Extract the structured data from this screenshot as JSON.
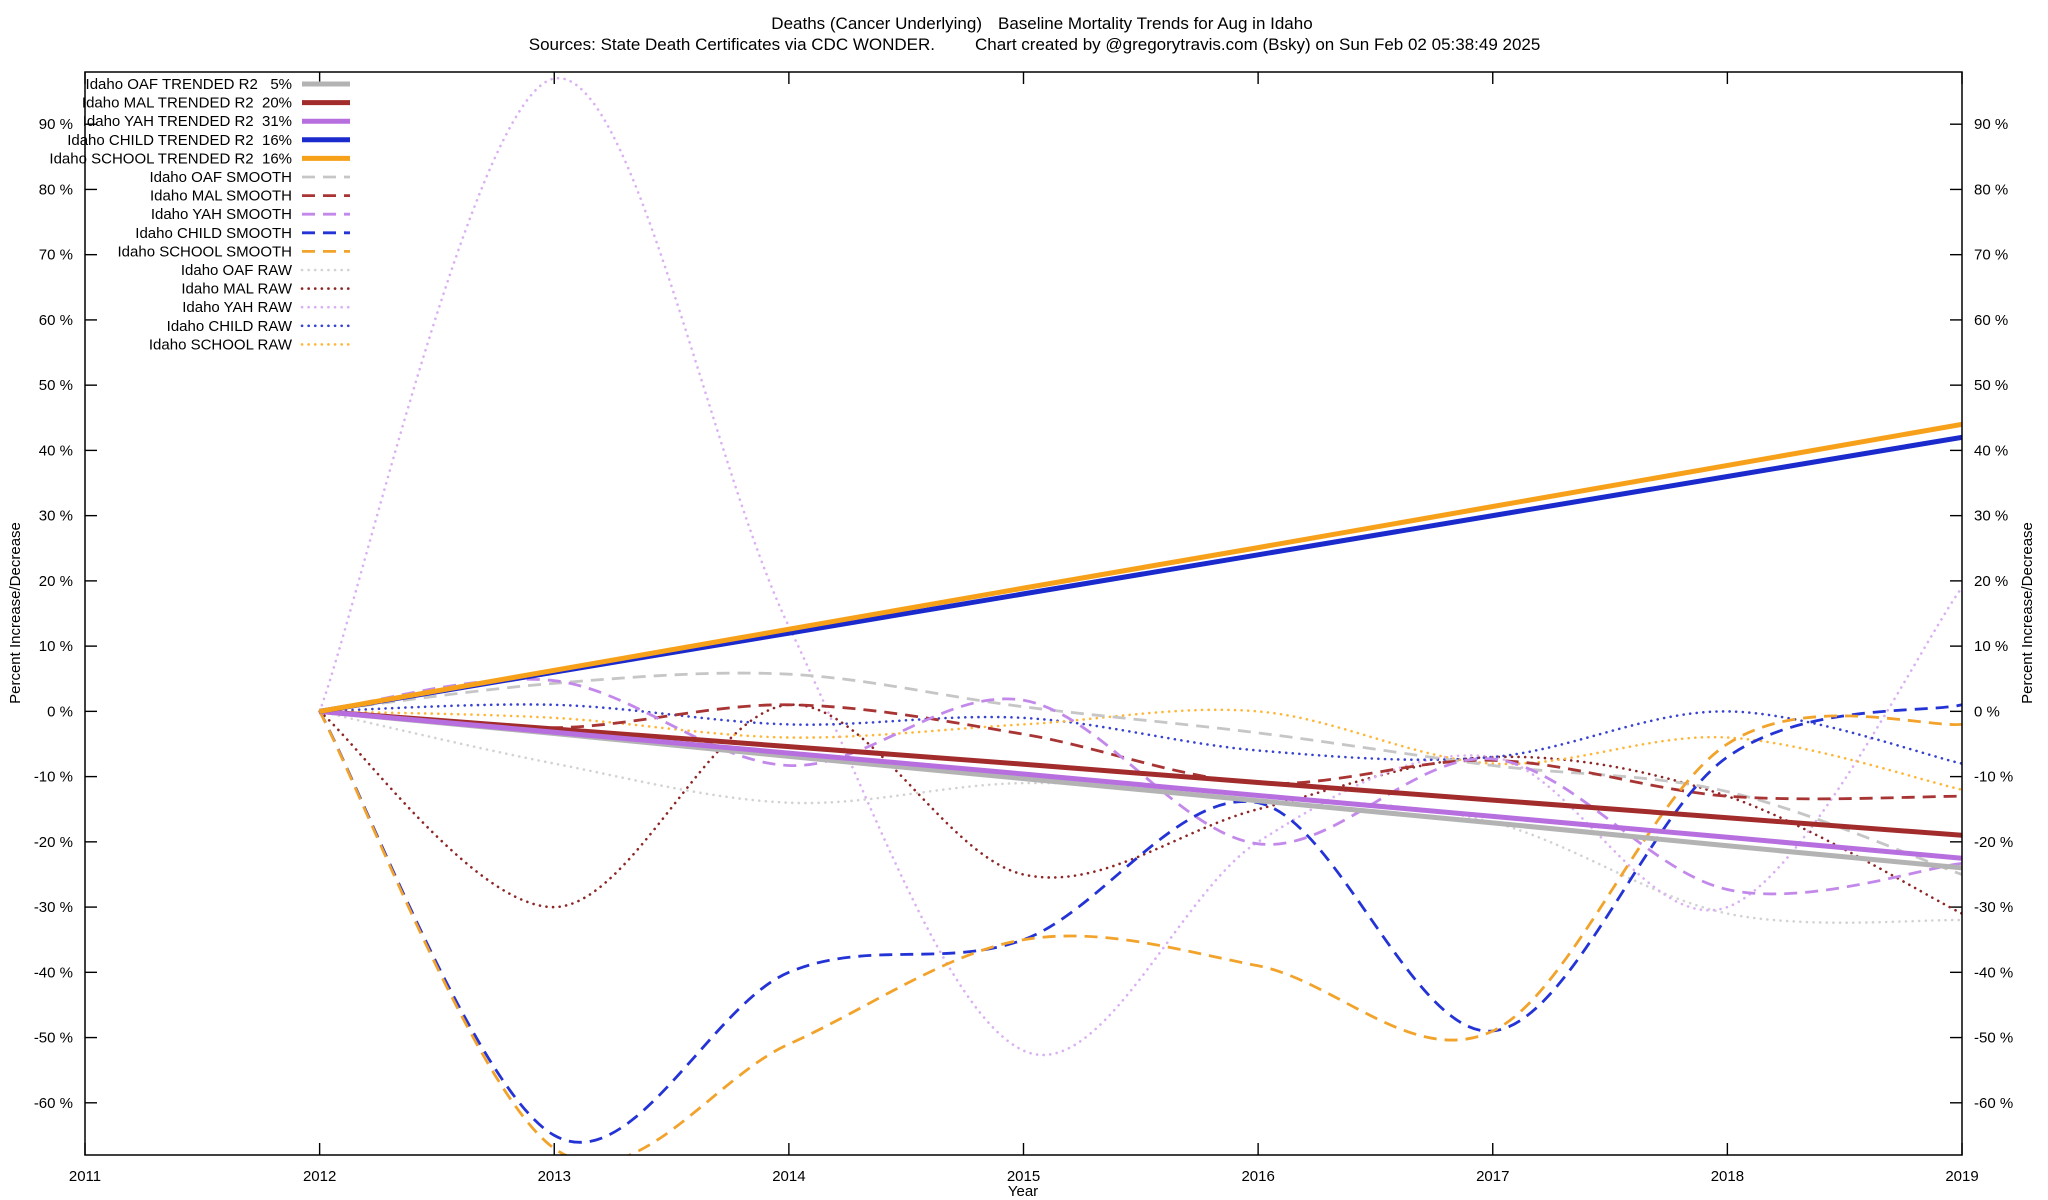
{
  "header": {
    "title_left": "Deaths (Cancer Underlying)",
    "title_right": "Baseline Mortality Trends for Aug in Idaho",
    "subtitle_left": "Sources: State Death Certificates via CDC WONDER.",
    "subtitle_right": "Chart created by @gregorytravis.com (Bsky) on Sun Feb 02 05:38:49 2025"
  },
  "chart_data": {
    "type": "line",
    "title": "Deaths (Cancer Underlying)  Baseline Mortality Trends for Aug in Idaho",
    "xlabel": "Year",
    "ylabel": "Percent Increase/Decrease",
    "y2label": "Percent Increase/Decrease",
    "xlim": [
      2011,
      2019
    ],
    "ylim": [
      -68,
      98
    ],
    "xticks": [
      2011,
      2012,
      2013,
      2014,
      2015,
      2016,
      2017,
      2018,
      2019
    ],
    "yticks": [
      -60,
      -50,
      -40,
      -30,
      -20,
      -10,
      0,
      10,
      20,
      30,
      40,
      50,
      60,
      70,
      80,
      90
    ],
    "ytick_suffix": " %",
    "grid": false,
    "legend_position": "top-left",
    "x": [
      2012,
      2013,
      2014,
      2015,
      2016,
      2017,
      2018,
      2019
    ],
    "series": [
      {
        "name": "Idaho OAF TRENDED R2   5%",
        "style": "trend",
        "color": "#b3b3b3",
        "values": [
          0,
          -3.4,
          -6.9,
          -10.3,
          -13.7,
          -17.1,
          -20.6,
          -24
        ]
      },
      {
        "name": "Idaho MAL TRENDED R2  20%",
        "style": "trend",
        "color": "#a22c2c",
        "values": [
          0,
          -2.7,
          -5.4,
          -8.1,
          -10.9,
          -13.6,
          -16.3,
          -19
        ]
      },
      {
        "name": "Idaho YAH TRENDED R2  31%",
        "style": "trend",
        "color": "#b76fe0",
        "values": [
          0,
          -3.2,
          -6.4,
          -9.6,
          -12.9,
          -16.1,
          -19.3,
          -22.5
        ]
      },
      {
        "name": "Idaho CHILD TRENDED R2  16%",
        "style": "trend",
        "color": "#1b2acc",
        "values": [
          0,
          6,
          12,
          18,
          24,
          30,
          36,
          42
        ]
      },
      {
        "name": "Idaho SCHOOL TRENDED R2  16%",
        "style": "trend",
        "color": "#f7a11a",
        "values": [
          0,
          6.3,
          12.6,
          18.9,
          25.1,
          31.4,
          37.7,
          44
        ]
      },
      {
        "name": "Idaho OAF SMOOTH",
        "style": "smooth",
        "color": "#c6c6c6",
        "values": [
          0,
          4.3,
          5.7,
          0.7,
          -3.3,
          -8.3,
          -12.3,
          -25
        ]
      },
      {
        "name": "Idaho MAL SMOOTH",
        "style": "smooth",
        "color": "#a83434",
        "values": [
          0,
          -2.5,
          1,
          -3.5,
          -11,
          -7.5,
          -13,
          -13
        ]
      },
      {
        "name": "Idaho YAH SMOOTH",
        "style": "smooth",
        "color": "#c389ea",
        "values": [
          0,
          4.7,
          -8.3,
          1.7,
          -20.3,
          -7.3,
          -27.3,
          -23.3
        ]
      },
      {
        "name": "Idaho CHILD SMOOTH",
        "style": "smooth",
        "color": "#2433d6",
        "values": [
          0,
          -65,
          -40,
          -35,
          -14,
          -49,
          -7,
          1
        ]
      },
      {
        "name": "Idaho SCHOOL SMOOTH",
        "style": "smooth",
        "color": "#f2a32b",
        "values": [
          0,
          -67,
          -51,
          -35,
          -39,
          -49,
          -5,
          -2
        ]
      },
      {
        "name": "Idaho OAF RAW",
        "style": "raw",
        "color": "#d2d2d2",
        "values": [
          0,
          -8,
          -14,
          -11,
          -13,
          -17,
          -31,
          -32
        ]
      },
      {
        "name": "Idaho MAL RAW",
        "style": "raw",
        "color": "#8e2626",
        "values": [
          0,
          -30,
          1,
          -25,
          -15,
          -7,
          -13,
          -31
        ]
      },
      {
        "name": "Idaho YAH RAW",
        "style": "raw",
        "color": "#d9b0f2",
        "values": [
          0,
          97,
          13,
          -52,
          -20,
          -7,
          -30,
          19
        ]
      },
      {
        "name": "Idaho CHILD RAW",
        "style": "raw",
        "color": "#3742cf",
        "values": [
          0,
          1,
          -2,
          -1,
          -6,
          -7,
          0,
          -8
        ]
      },
      {
        "name": "Idaho SCHOOL RAW",
        "style": "raw",
        "color": "#ffb637",
        "values": [
          0,
          -1,
          -4,
          -2,
          0,
          -8,
          -4,
          -12
        ]
      }
    ]
  }
}
